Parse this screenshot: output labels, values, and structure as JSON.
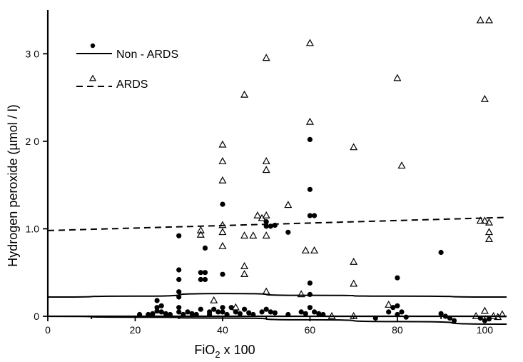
{
  "chart_data": {
    "type": "scatter",
    "xlabel": "FiO",
    "xlabel_sub": "2",
    "xlabel_suffix": " x 100",
    "ylabel": "Hydrogen peroxide  (µmol / l)",
    "xlim": [
      0,
      105
    ],
    "ylim": [
      0,
      3.5
    ],
    "x_ticks": [
      0,
      20,
      40,
      60,
      80,
      100
    ],
    "x_minor_ticks": [
      10,
      30,
      50,
      70,
      90
    ],
    "y_ticks": [
      0,
      1.0,
      2.0,
      3.0
    ],
    "y_tick_labels": [
      "0",
      "1.0",
      "2 0",
      "3 0"
    ],
    "legend_position": "top-left",
    "grid": false,
    "series": [
      {
        "name": "Non - ARDS",
        "marker": "filled-circle",
        "line_style": "solid",
        "points": [
          [
            21,
            0.02
          ],
          [
            23,
            0.02
          ],
          [
            24,
            0.03
          ],
          [
            25,
            0.06
          ],
          [
            25,
            0.1
          ],
          [
            25,
            0.18
          ],
          [
            26,
            0.05
          ],
          [
            26,
            0.12
          ],
          [
            27,
            0.03
          ],
          [
            28,
            0.02
          ],
          [
            30,
            0.92
          ],
          [
            30,
            0.53
          ],
          [
            30,
            0.42
          ],
          [
            30,
            0.28
          ],
          [
            30,
            0.22
          ],
          [
            30,
            0.1
          ],
          [
            30,
            0.05
          ],
          [
            31,
            0.02
          ],
          [
            32,
            0.05
          ],
          [
            33,
            0.03
          ],
          [
            34,
            0.02
          ],
          [
            35,
            0.5
          ],
          [
            35,
            0.42
          ],
          [
            35,
            0.08
          ],
          [
            36,
            0.78
          ],
          [
            36,
            0.5
          ],
          [
            36,
            0.42
          ],
          [
            37,
            0.05
          ],
          [
            37,
            0.02
          ],
          [
            38,
            0.08
          ],
          [
            39,
            0.05
          ],
          [
            40,
            1.28
          ],
          [
            40,
            0.48
          ],
          [
            40,
            0.1
          ],
          [
            40,
            0.05
          ],
          [
            41,
            0.02
          ],
          [
            42,
            0.1
          ],
          [
            43,
            0.05
          ],
          [
            44,
            0.03
          ],
          [
            45,
            0.08
          ],
          [
            46,
            0.04
          ],
          [
            47,
            0.02
          ],
          [
            49,
            0.05
          ],
          [
            50,
            1.08
          ],
          [
            50,
            1.03
          ],
          [
            50,
            0.08
          ],
          [
            51,
            1.03
          ],
          [
            51,
            0.05
          ],
          [
            52,
            0.04
          ],
          [
            52,
            1.04
          ],
          [
            55,
            0.96
          ],
          [
            55,
            0.02
          ],
          [
            58,
            0.05
          ],
          [
            59,
            0.03
          ],
          [
            60,
            2.02
          ],
          [
            60,
            1.45
          ],
          [
            60,
            1.15
          ],
          [
            60,
            0.38
          ],
          [
            60,
            0.25
          ],
          [
            60,
            0.1
          ],
          [
            61,
            1.15
          ],
          [
            61,
            0.05
          ],
          [
            62,
            0.03
          ],
          [
            63,
            0.02
          ],
          [
            75,
            -0.02
          ],
          [
            78,
            0.05
          ],
          [
            79,
            0.1
          ],
          [
            80,
            0.44
          ],
          [
            80,
            0.12
          ],
          [
            80,
            0.02
          ],
          [
            81,
            0.05
          ],
          [
            82,
            -0.01
          ],
          [
            90,
            0.73
          ],
          [
            90,
            0.03
          ],
          [
            91,
            0.0
          ],
          [
            92,
            -0.02
          ],
          [
            93,
            -0.05
          ],
          [
            99,
            -0.02
          ],
          [
            100,
            -0.05
          ],
          [
            101,
            -0.03
          ]
        ]
      },
      {
        "name": "ARDS",
        "marker": "open-triangle",
        "line_style": "dashed",
        "points": [
          [
            35,
            0.98
          ],
          [
            35,
            0.93
          ],
          [
            38,
            0.18
          ],
          [
            40,
            1.96
          ],
          [
            40,
            1.77
          ],
          [
            40,
            1.55
          ],
          [
            40,
            1.04
          ],
          [
            40,
            0.96
          ],
          [
            40,
            0.8
          ],
          [
            43,
            0.1
          ],
          [
            45,
            2.53
          ],
          [
            45,
            0.92
          ],
          [
            45,
            0.57
          ],
          [
            45,
            0.48
          ],
          [
            47,
            0.92
          ],
          [
            48,
            1.15
          ],
          [
            49,
            1.12
          ],
          [
            50,
            2.95
          ],
          [
            50,
            1.77
          ],
          [
            50,
            1.67
          ],
          [
            50,
            1.15
          ],
          [
            50,
            0.92
          ],
          [
            50,
            0.28
          ],
          [
            55,
            1.27
          ],
          [
            58,
            0.25
          ],
          [
            59,
            0.75
          ],
          [
            60,
            3.12
          ],
          [
            60,
            2.22
          ],
          [
            61,
            0.75
          ],
          [
            65,
            0.0
          ],
          [
            70,
            1.93
          ],
          [
            70,
            0.62
          ],
          [
            70,
            0.37
          ],
          [
            70,
            0.0
          ],
          [
            78,
            0.13
          ],
          [
            80,
            2.72
          ],
          [
            81,
            1.72
          ],
          [
            98,
            0.0
          ],
          [
            99,
            3.38
          ],
          [
            99,
            1.09
          ],
          [
            100,
            2.48
          ],
          [
            100,
            1.09
          ],
          [
            101,
            3.38
          ],
          [
            101,
            1.07
          ],
          [
            101,
            0.96
          ],
          [
            101,
            0.88
          ],
          [
            100,
            0.06
          ],
          [
            102,
            0.0
          ],
          [
            103,
            -0.01
          ],
          [
            104,
            0.02
          ]
        ],
        "regression": [
          [
            0,
            0.98
          ],
          [
            105,
            1.13
          ]
        ]
      }
    ],
    "non_ards_curves": [
      [
        [
          0,
          0.22
        ],
        [
          20,
          0.23
        ],
        [
          40,
          0.26
        ],
        [
          60,
          0.24
        ],
        [
          80,
          0.23
        ],
        [
          105,
          0.22
        ]
      ],
      [
        [
          0,
          0.0
        ],
        [
          20,
          -0.01
        ],
        [
          40,
          -0.02
        ],
        [
          60,
          -0.04
        ],
        [
          80,
          -0.06
        ],
        [
          105,
          -0.09
        ]
      ]
    ]
  }
}
